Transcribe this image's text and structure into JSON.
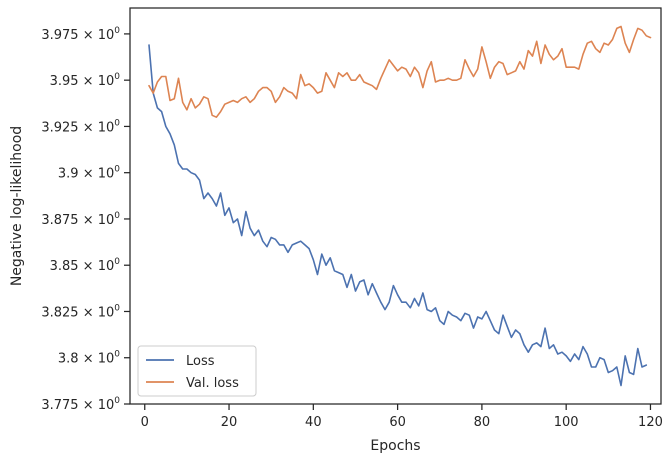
{
  "chart_data": {
    "type": "line",
    "title": "",
    "xlabel": "Epochs",
    "ylabel": "Negative log-likelihood",
    "xlim": [
      -3.5,
      122.5
    ],
    "ylim": [
      3.775,
      3.989
    ],
    "xticks": [
      0,
      20,
      40,
      60,
      80,
      100,
      120
    ],
    "xtick_labels": [
      "0",
      "20",
      "40",
      "60",
      "80",
      "100",
      "120"
    ],
    "yticks": [
      3.775,
      3.8,
      3.825,
      3.85,
      3.875,
      3.9,
      3.925,
      3.95,
      3.975
    ],
    "ytick_labels": [
      {
        "mant": "3.775",
        "exp": "0"
      },
      {
        "mant": "3.8",
        "exp": "0"
      },
      {
        "mant": "3.825",
        "exp": "0"
      },
      {
        "mant": "3.85",
        "exp": "0"
      },
      {
        "mant": "3.875",
        "exp": "0"
      },
      {
        "mant": "3.9",
        "exp": "0"
      },
      {
        "mant": "3.925",
        "exp": "0"
      },
      {
        "mant": "3.95",
        "exp": "0"
      },
      {
        "mant": "3.975",
        "exp": "0"
      }
    ],
    "legend_position": "lower-left",
    "series": [
      {
        "name": "Loss",
        "color": "#4c72b0",
        "x_start": 1,
        "values": [
          3.969,
          3.943,
          3.935,
          3.933,
          3.925,
          3.921,
          3.915,
          3.905,
          3.902,
          3.902,
          3.9,
          3.899,
          3.896,
          3.886,
          3.889,
          3.886,
          3.882,
          3.889,
          3.877,
          3.881,
          3.873,
          3.875,
          3.866,
          3.879,
          3.87,
          3.866,
          3.869,
          3.863,
          3.86,
          3.865,
          3.864,
          3.861,
          3.861,
          3.857,
          3.861,
          3.862,
          3.863,
          3.861,
          3.859,
          3.853,
          3.845,
          3.856,
          3.85,
          3.854,
          3.847,
          3.846,
          3.845,
          3.838,
          3.845,
          3.836,
          3.841,
          3.842,
          3.834,
          3.84,
          3.835,
          3.83,
          3.826,
          3.83,
          3.839,
          3.834,
          3.83,
          3.83,
          3.827,
          3.832,
          3.828,
          3.835,
          3.826,
          3.825,
          3.827,
          3.82,
          3.818,
          3.825,
          3.823,
          3.822,
          3.82,
          3.824,
          3.823,
          3.816,
          3.822,
          3.821,
          3.825,
          3.82,
          3.815,
          3.813,
          3.823,
          3.817,
          3.811,
          3.815,
          3.813,
          3.807,
          3.803,
          3.807,
          3.808,
          3.806,
          3.816,
          3.805,
          3.807,
          3.802,
          3.803,
          3.801,
          3.798,
          3.802,
          3.799,
          3.806,
          3.802,
          3.795,
          3.795,
          3.8,
          3.799,
          3.792,
          3.793,
          3.795,
          3.785,
          3.801,
          3.792,
          3.791,
          3.805,
          3.795,
          3.796
        ]
      },
      {
        "name": "Val. loss",
        "color": "#dd8452",
        "x_start": 1,
        "values": [
          3.947,
          3.943,
          3.949,
          3.952,
          3.952,
          3.939,
          3.94,
          3.951,
          3.938,
          3.934,
          3.94,
          3.935,
          3.937,
          3.941,
          3.94,
          3.931,
          3.93,
          3.933,
          3.937,
          3.938,
          3.939,
          3.938,
          3.94,
          3.941,
          3.938,
          3.94,
          3.944,
          3.946,
          3.946,
          3.944,
          3.938,
          3.941,
          3.946,
          3.944,
          3.943,
          3.94,
          3.953,
          3.947,
          3.948,
          3.946,
          3.943,
          3.944,
          3.954,
          3.95,
          3.946,
          3.954,
          3.952,
          3.954,
          3.95,
          3.95,
          3.953,
          3.949,
          3.948,
          3.947,
          3.945,
          3.951,
          3.956,
          3.961,
          3.958,
          3.955,
          3.957,
          3.956,
          3.952,
          3.957,
          3.954,
          3.946,
          3.955,
          3.96,
          3.949,
          3.95,
          3.95,
          3.951,
          3.95,
          3.95,
          3.951,
          3.961,
          3.956,
          3.952,
          3.956,
          3.968,
          3.96,
          3.951,
          3.957,
          3.96,
          3.959,
          3.953,
          3.954,
          3.955,
          3.96,
          3.956,
          3.966,
          3.963,
          3.971,
          3.959,
          3.969,
          3.964,
          3.961,
          3.963,
          3.967,
          3.957,
          3.957,
          3.957,
          3.956,
          3.964,
          3.97,
          3.971,
          3.967,
          3.965,
          3.97,
          3.969,
          3.972,
          3.978,
          3.979,
          3.97,
          3.965,
          3.972,
          3.978,
          3.977,
          3.974,
          3.973
        ]
      }
    ]
  }
}
